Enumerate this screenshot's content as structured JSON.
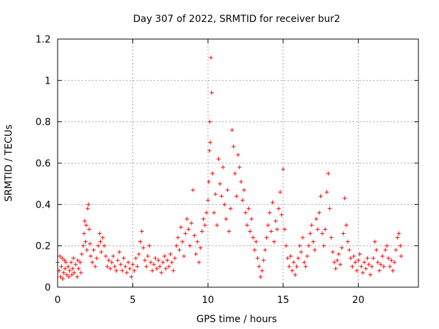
{
  "chart_data": {
    "type": "scatter",
    "title": "Day 307 of 2022, SRMTID for receiver bur2",
    "xlabel": "GPS time / hours",
    "ylabel": "SRMTID / TECUs",
    "xlim": [
      0,
      24
    ],
    "ylim": [
      0,
      1.2
    ],
    "xticks": [
      0,
      5,
      10,
      15,
      20
    ],
    "xtick_labels": [
      "0",
      "5",
      "10",
      "15",
      "20"
    ],
    "yticks": [
      0,
      0.2,
      0.4,
      0.6,
      0.8,
      1.0,
      1.2
    ],
    "ytick_labels": [
      "0",
      "0.2",
      "0.4",
      "0.6",
      "0.8",
      "1",
      "1.2"
    ],
    "grid": true,
    "marker": "+",
    "color": "#ff0000",
    "series": [
      {
        "name": "bur2",
        "points": [
          [
            0.0,
            0.12
          ],
          [
            0.1,
            0.08
          ],
          [
            0.15,
            0.15
          ],
          [
            0.2,
            0.05
          ],
          [
            0.25,
            0.1
          ],
          [
            0.3,
            0.14
          ],
          [
            0.35,
            0.04
          ],
          [
            0.4,
            0.07
          ],
          [
            0.45,
            0.13
          ],
          [
            0.5,
            0.09
          ],
          [
            0.55,
            0.12
          ],
          [
            0.6,
            0.06
          ],
          [
            0.7,
            0.1
          ],
          [
            0.75,
            0.05
          ],
          [
            0.8,
            0.08
          ],
          [
            0.9,
            0.12
          ],
          [
            0.95,
            0.06
          ],
          [
            1.0,
            0.09
          ],
          [
            1.05,
            0.14
          ],
          [
            1.1,
            0.07
          ],
          [
            1.2,
            0.11
          ],
          [
            1.3,
            0.05
          ],
          [
            1.35,
            0.13
          ],
          [
            1.4,
            0.09
          ],
          [
            1.5,
            0.12
          ],
          [
            1.55,
            0.07
          ],
          [
            1.6,
            0.16
          ],
          [
            1.7,
            0.2
          ],
          [
            1.75,
            0.26
          ],
          [
            1.8,
            0.32
          ],
          [
            1.85,
            0.22
          ],
          [
            1.9,
            0.3
          ],
          [
            1.95,
            0.18
          ],
          [
            2.0,
            0.38
          ],
          [
            2.05,
            0.4
          ],
          [
            2.1,
            0.28
          ],
          [
            2.15,
            0.21
          ],
          [
            2.2,
            0.15
          ],
          [
            2.3,
            0.12
          ],
          [
            2.4,
            0.18
          ],
          [
            2.5,
            0.1
          ],
          [
            2.6,
            0.14
          ],
          [
            2.7,
            0.2
          ],
          [
            2.8,
            0.26
          ],
          [
            2.85,
            0.22
          ],
          [
            2.9,
            0.17
          ],
          [
            3.0,
            0.24
          ],
          [
            3.1,
            0.2
          ],
          [
            3.2,
            0.15
          ],
          [
            3.3,
            0.1
          ],
          [
            3.4,
            0.13
          ],
          [
            3.5,
            0.09
          ],
          [
            3.6,
            0.12
          ],
          [
            3.7,
            0.15
          ],
          [
            3.8,
            0.1
          ],
          [
            3.9,
            0.08
          ],
          [
            4.0,
            0.13
          ],
          [
            4.1,
            0.17
          ],
          [
            4.2,
            0.11
          ],
          [
            4.3,
            0.08
          ],
          [
            4.4,
            0.14
          ],
          [
            4.5,
            0.1
          ],
          [
            4.6,
            0.07
          ],
          [
            4.7,
            0.12
          ],
          [
            4.8,
            0.09
          ],
          [
            4.9,
            0.05
          ],
          [
            5.0,
            0.11
          ],
          [
            5.1,
            0.08
          ],
          [
            5.2,
            0.14
          ],
          [
            5.3,
            0.1
          ],
          [
            5.4,
            0.16
          ],
          [
            5.5,
            0.22
          ],
          [
            5.6,
            0.27
          ],
          [
            5.7,
            0.19
          ],
          [
            5.8,
            0.13
          ],
          [
            5.9,
            0.1
          ],
          [
            6.0,
            0.15
          ],
          [
            6.1,
            0.2
          ],
          [
            6.2,
            0.12
          ],
          [
            6.3,
            0.08
          ],
          [
            6.4,
            0.11
          ],
          [
            6.5,
            0.14
          ],
          [
            6.6,
            0.09
          ],
          [
            6.7,
            0.13
          ],
          [
            6.8,
            0.1
          ],
          [
            6.9,
            0.07
          ],
          [
            7.0,
            0.12
          ],
          [
            7.1,
            0.15
          ],
          [
            7.2,
            0.09
          ],
          [
            7.3,
            0.13
          ],
          [
            7.4,
            0.1
          ],
          [
            7.5,
            0.16
          ],
          [
            7.6,
            0.12
          ],
          [
            7.7,
            0.08
          ],
          [
            7.8,
            0.14
          ],
          [
            7.9,
            0.2
          ],
          [
            8.0,
            0.24
          ],
          [
            8.1,
            0.18
          ],
          [
            8.2,
            0.29
          ],
          [
            8.3,
            0.22
          ],
          [
            8.4,
            0.15
          ],
          [
            8.5,
            0.26
          ],
          [
            8.6,
            0.33
          ],
          [
            8.7,
            0.28
          ],
          [
            8.8,
            0.2
          ],
          [
            8.9,
            0.31
          ],
          [
            9.0,
            0.47
          ],
          [
            9.1,
            0.25
          ],
          [
            9.2,
            0.16
          ],
          [
            9.3,
            0.22
          ],
          [
            9.4,
            0.12
          ],
          [
            9.5,
            0.19
          ],
          [
            9.6,
            0.27
          ],
          [
            9.7,
            0.33
          ],
          [
            9.8,
            0.3
          ],
          [
            9.9,
            0.36
          ],
          [
            10.0,
            0.42
          ],
          [
            10.05,
            0.51
          ],
          [
            10.1,
            0.66
          ],
          [
            10.12,
            0.8
          ],
          [
            10.15,
            0.7
          ],
          [
            10.2,
            1.11
          ],
          [
            10.25,
            0.94
          ],
          [
            10.3,
            0.55
          ],
          [
            10.4,
            0.36
          ],
          [
            10.5,
            0.45
          ],
          [
            10.6,
            0.3
          ],
          [
            10.7,
            0.62
          ],
          [
            10.8,
            0.5
          ],
          [
            10.9,
            0.44
          ],
          [
            11.0,
            0.58
          ],
          [
            11.1,
            0.4
          ],
          [
            11.2,
            0.33
          ],
          [
            11.3,
            0.47
          ],
          [
            11.4,
            0.27
          ],
          [
            11.5,
            0.38
          ],
          [
            11.6,
            0.76
          ],
          [
            11.7,
            0.68
          ],
          [
            11.8,
            0.55
          ],
          [
            11.9,
            0.44
          ],
          [
            12.0,
            0.64
          ],
          [
            12.1,
            0.58
          ],
          [
            12.2,
            0.51
          ],
          [
            12.3,
            0.42
          ],
          [
            12.4,
            0.47
          ],
          [
            12.5,
            0.36
          ],
          [
            12.6,
            0.3
          ],
          [
            12.7,
            0.38
          ],
          [
            12.8,
            0.27
          ],
          [
            12.9,
            0.33
          ],
          [
            13.0,
            0.24
          ],
          [
            13.1,
            0.18
          ],
          [
            13.2,
            0.22
          ],
          [
            13.3,
            0.14
          ],
          [
            13.4,
            0.1
          ],
          [
            13.5,
            0.05
          ],
          [
            13.6,
            0.08
          ],
          [
            13.7,
            0.13
          ],
          [
            13.8,
            0.18
          ],
          [
            13.9,
            0.24
          ],
          [
            14.0,
            0.3
          ],
          [
            14.1,
            0.36
          ],
          [
            14.2,
            0.27
          ],
          [
            14.3,
            0.41
          ],
          [
            14.4,
            0.22
          ],
          [
            14.5,
            0.32
          ],
          [
            14.6,
            0.28
          ],
          [
            14.7,
            0.38
          ],
          [
            14.8,
            0.46
          ],
          [
            14.9,
            0.35
          ],
          [
            15.0,
            0.57
          ],
          [
            15.1,
            0.28
          ],
          [
            15.2,
            0.2
          ],
          [
            15.3,
            0.14
          ],
          [
            15.4,
            0.1
          ],
          [
            15.5,
            0.15
          ],
          [
            15.6,
            0.08
          ],
          [
            15.7,
            0.12
          ],
          [
            15.8,
            0.06
          ],
          [
            15.9,
            0.1
          ],
          [
            16.0,
            0.14
          ],
          [
            16.1,
            0.2
          ],
          [
            16.2,
            0.17
          ],
          [
            16.3,
            0.24
          ],
          [
            16.4,
            0.12
          ],
          [
            16.5,
            0.1
          ],
          [
            16.6,
            0.15
          ],
          [
            16.7,
            0.2
          ],
          [
            16.8,
            0.26
          ],
          [
            16.9,
            0.3
          ],
          [
            17.0,
            0.22
          ],
          [
            17.1,
            0.18
          ],
          [
            17.2,
            0.33
          ],
          [
            17.3,
            0.28
          ],
          [
            17.4,
            0.36
          ],
          [
            17.5,
            0.44
          ],
          [
            17.6,
            0.26
          ],
          [
            17.7,
            0.2
          ],
          [
            17.8,
            0.28
          ],
          [
            17.9,
            0.46
          ],
          [
            18.0,
            0.55
          ],
          [
            18.1,
            0.38
          ],
          [
            18.2,
            0.24
          ],
          [
            18.3,
            0.17
          ],
          [
            18.4,
            0.12
          ],
          [
            18.5,
            0.09
          ],
          [
            18.6,
            0.13
          ],
          [
            18.7,
            0.16
          ],
          [
            18.8,
            0.11
          ],
          [
            18.9,
            0.19
          ],
          [
            19.0,
            0.26
          ],
          [
            19.1,
            0.43
          ],
          [
            19.2,
            0.3
          ],
          [
            19.3,
            0.22
          ],
          [
            19.4,
            0.18
          ],
          [
            19.5,
            0.14
          ],
          [
            19.6,
            0.1
          ],
          [
            19.7,
            0.15
          ],
          [
            19.8,
            0.12
          ],
          [
            19.9,
            0.08
          ],
          [
            20.0,
            0.13
          ],
          [
            20.1,
            0.16
          ],
          [
            20.2,
            0.1
          ],
          [
            20.3,
            0.07
          ],
          [
            20.4,
            0.12
          ],
          [
            20.5,
            0.09
          ],
          [
            20.6,
            0.14
          ],
          [
            20.7,
            0.11
          ],
          [
            20.8,
            0.06
          ],
          [
            20.9,
            0.1
          ],
          [
            21.0,
            0.14
          ],
          [
            21.1,
            0.22
          ],
          [
            21.2,
            0.18
          ],
          [
            21.3,
            0.12
          ],
          [
            21.4,
            0.08
          ],
          [
            21.5,
            0.11
          ],
          [
            21.6,
            0.15
          ],
          [
            21.7,
            0.1
          ],
          [
            21.8,
            0.18
          ],
          [
            21.9,
            0.2
          ],
          [
            22.0,
            0.14
          ],
          [
            22.1,
            0.1
          ],
          [
            22.2,
            0.13
          ],
          [
            22.3,
            0.08
          ],
          [
            22.4,
            0.12
          ],
          [
            22.5,
            0.18
          ],
          [
            22.6,
            0.24
          ],
          [
            22.7,
            0.26
          ],
          [
            22.8,
            0.2
          ],
          [
            22.85,
            0.15
          ]
        ]
      }
    ]
  }
}
